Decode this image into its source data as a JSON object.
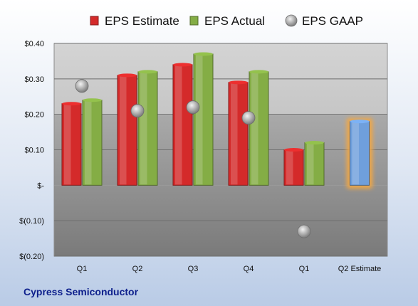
{
  "company": "Cypress Semiconductor",
  "chart_data": {
    "type": "bar",
    "categories": [
      "Q1",
      "Q2",
      "Q3",
      "Q4",
      "Q1",
      "Q2 Estimate"
    ],
    "series": [
      {
        "name": "EPS Estimate",
        "kind": "bar",
        "color": "#d42a2a",
        "values": [
          0.23,
          0.31,
          0.34,
          0.29,
          0.1,
          null
        ]
      },
      {
        "name": "EPS Actual",
        "kind": "bar",
        "color": "#84ad45",
        "values": [
          0.24,
          0.32,
          0.37,
          0.32,
          0.12,
          null
        ]
      },
      {
        "name": "EPS GAAP",
        "kind": "marker",
        "color": "#9a9a9a",
        "values": [
          0.28,
          0.21,
          0.22,
          0.19,
          -0.13,
          null
        ]
      },
      {
        "name": "",
        "kind": "bar",
        "color": "#6f9fdc",
        "values": [
          null,
          null,
          null,
          null,
          null,
          0.18
        ]
      }
    ],
    "yticks": [
      {
        "value": 0.4,
        "label": "$0.40"
      },
      {
        "value": 0.3,
        "label": "$0.30"
      },
      {
        "value": 0.2,
        "label": "$0.20"
      },
      {
        "value": 0.1,
        "label": "$0.10"
      },
      {
        "value": 0,
        "label": "$-"
      },
      {
        "value": -0.1,
        "label": "$(0.10)"
      },
      {
        "value": -0.2,
        "label": "$(0.20)"
      }
    ],
    "ylim": [
      -0.2,
      0.4
    ],
    "grid": true,
    "legend_position": "top"
  }
}
